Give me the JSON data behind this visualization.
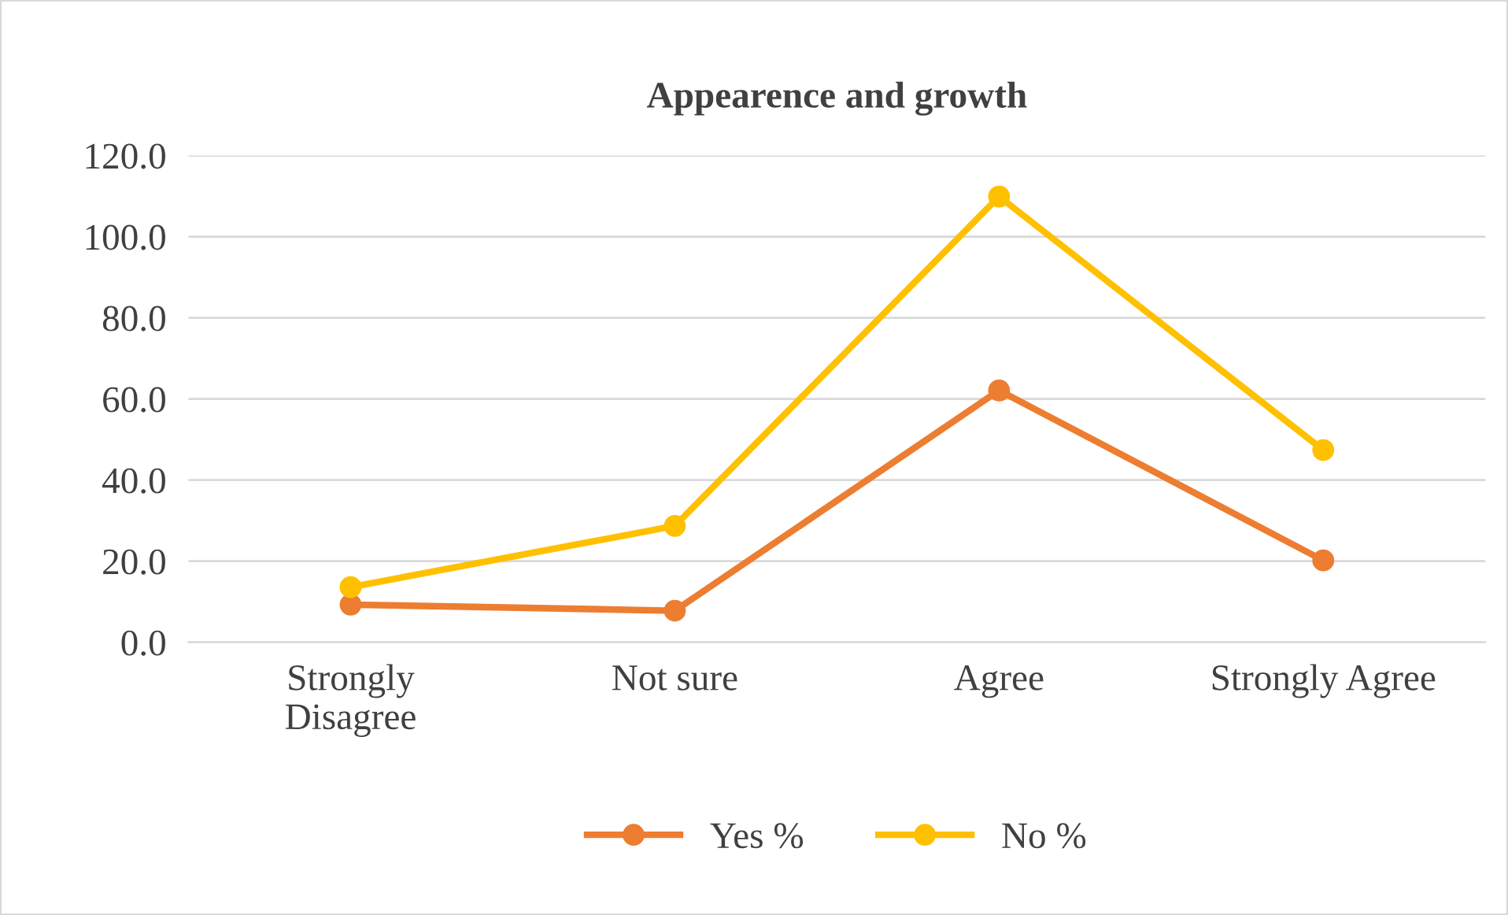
{
  "chart_data": {
    "type": "line",
    "title": "Appearence and growth",
    "categories": [
      "Strongly\nDisagree",
      "Not sure",
      "Agree",
      "Strongly Agree"
    ],
    "series": [
      {
        "name": "Yes %",
        "color": "#ed7d31",
        "values": [
          9.3,
          7.8,
          62.1,
          20.2
        ]
      },
      {
        "name": "No %",
        "color": "#ffc000",
        "values": [
          13.6,
          28.7,
          109.9,
          47.4
        ]
      }
    ],
    "ylim": [
      0,
      120
    ],
    "yticks": [
      {
        "value": 0,
        "label": "0.0"
      },
      {
        "value": 20,
        "label": "20.0"
      },
      {
        "value": 40,
        "label": "40.0"
      },
      {
        "value": 60,
        "label": "60.0"
      },
      {
        "value": 80,
        "label": "80.0"
      },
      {
        "value": 100,
        "label": "100.0"
      },
      {
        "value": 120,
        "label": "120.0"
      }
    ],
    "grid": "y",
    "legend": "bottom",
    "marker": "circle",
    "line_style": "solid"
  }
}
